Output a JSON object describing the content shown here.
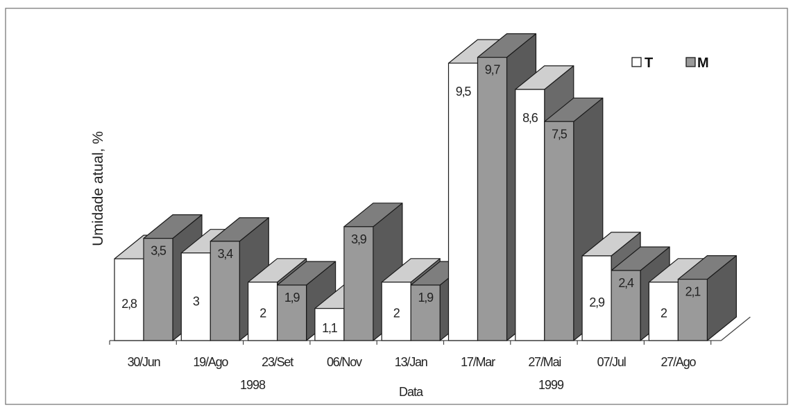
{
  "chart_data": {
    "type": "bar",
    "ylabel": "Umidade atual, %",
    "xlabel": "Data",
    "categories": [
      "30/Jun",
      "19/Ago",
      "23/Set",
      "06/Nov",
      "13/Jan",
      "17/Mar",
      "27/Mai",
      "07/Jul",
      "27/Ago"
    ],
    "category_labels": [
      "30/Jun",
      "19/Ago",
      "23/Set",
      "06/Nov",
      "13/Jan",
      "17/Mar",
      "27/Mai",
      "07/Jul",
      "27/Ago"
    ],
    "year_labels": [
      "1998",
      "1999"
    ],
    "series": [
      {
        "name": "T",
        "color": "#ffffff",
        "values": [
          2.8,
          3,
          2,
          1.1,
          2,
          9.5,
          8.6,
          2.9,
          2
        ],
        "labels": [
          "2,8",
          "3",
          "2",
          "1,1",
          "2",
          "9,5",
          "8,6",
          "2,9",
          "2"
        ]
      },
      {
        "name": "M",
        "color": "#9a9a9a",
        "values": [
          3.5,
          3.4,
          1.9,
          3.9,
          1.9,
          9.7,
          7.5,
          2.4,
          2.1
        ],
        "labels": [
          "3,5",
          "3,4",
          "1,9",
          "3,9",
          "1,9",
          "9,7",
          "7,5",
          "2,4",
          "2,1"
        ]
      }
    ],
    "ylim": [
      0,
      10
    ],
    "grid": false,
    "legend_position": "top-right",
    "colors": {
      "t_front": "#ffffff",
      "t_top": "#cfcfcf",
      "m_front": "#9a9a9a",
      "m_top": "#7e7e7e",
      "m_side": "#5a5a5a",
      "t_side": "#6a6a6a",
      "outline": "#1a1a1a"
    }
  }
}
